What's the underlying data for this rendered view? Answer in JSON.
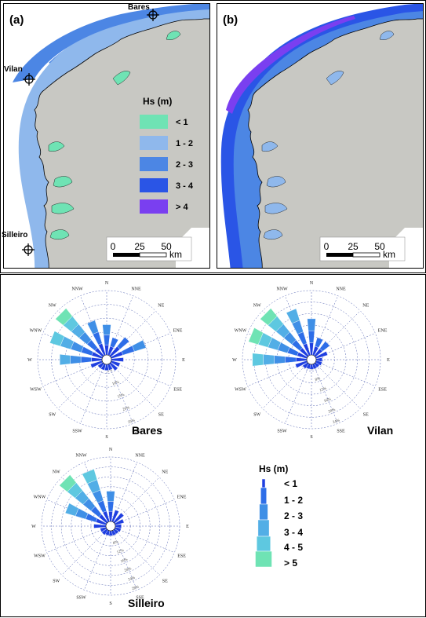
{
  "panels": {
    "a": {
      "label": "(a)",
      "stations": [
        "Bares",
        "Vilan",
        "Silleiro"
      ],
      "legend_title": "Hs (m)",
      "legend_items": [
        {
          "label": "< 1",
          "color": "#6fe3b4"
        },
        {
          "label": "1 - 2",
          "color": "#8fb8ec"
        },
        {
          "label": "2 - 3",
          "color": "#4c86e4"
        },
        {
          "label": "3 - 4",
          "color": "#2a55e6"
        },
        {
          "label": "> 4",
          "color": "#7a3ff0"
        }
      ],
      "scalebar": {
        "ticks": [
          "0",
          "25",
          "50"
        ],
        "unit": "km"
      }
    },
    "b": {
      "label": "(b)",
      "scalebar": {
        "ticks": [
          "0",
          "25",
          "50"
        ],
        "unit": "km"
      }
    }
  },
  "roses": {
    "directions": [
      "N",
      "NNE",
      "NE",
      "ENE",
      "E",
      "ESE",
      "SE",
      "SSE",
      "S",
      "SSW",
      "SW",
      "WSW",
      "W",
      "WNW",
      "NW",
      "NNW"
    ],
    "ring_labels_bares": [
      "5%",
      "10%",
      "15%",
      "20%",
      "25%"
    ],
    "ring_labels_vilan": [
      "4%",
      "8%",
      "12%",
      "16%",
      "20%",
      "24%"
    ],
    "ring_labels_silleiro": [
      "4%",
      "8%",
      "12%",
      "16%",
      "20%",
      "24%",
      "28%"
    ],
    "items": [
      {
        "name": "Bares",
        "petals": [
          5,
          3,
          4,
          6,
          2,
          1.5,
          1.5,
          1,
          1,
          1,
          1,
          2,
          7,
          9,
          10,
          6
        ]
      },
      {
        "name": "Vilan",
        "petals": [
          6,
          3,
          3,
          2,
          1,
          1,
          0.8,
          0.8,
          0.8,
          0.8,
          1,
          2,
          9,
          10,
          10,
          8
        ]
      },
      {
        "name": "Silleiro",
        "petals": [
          5,
          2,
          2,
          1.5,
          1,
          1,
          0.8,
          0.8,
          0.8,
          0.8,
          1,
          1,
          2,
          7,
          10,
          9
        ]
      }
    ],
    "legend_title": "Hs (m)",
    "legend_items": [
      {
        "label": "< 1",
        "color": "#1f3fe0"
      },
      {
        "label": "1 - 2",
        "color": "#2e6ee8"
      },
      {
        "label": "2 - 3",
        "color": "#3f8fe6"
      },
      {
        "label": "3 - 4",
        "color": "#52aee6"
      },
      {
        "label": "4 - 5",
        "color": "#5ec8e0"
      },
      {
        "label": "> 5",
        "color": "#6fe3b4"
      }
    ]
  },
  "colors": {
    "land": "#c8c8c3",
    "border": "#000000",
    "rose_grid": "#4f5fb0"
  }
}
